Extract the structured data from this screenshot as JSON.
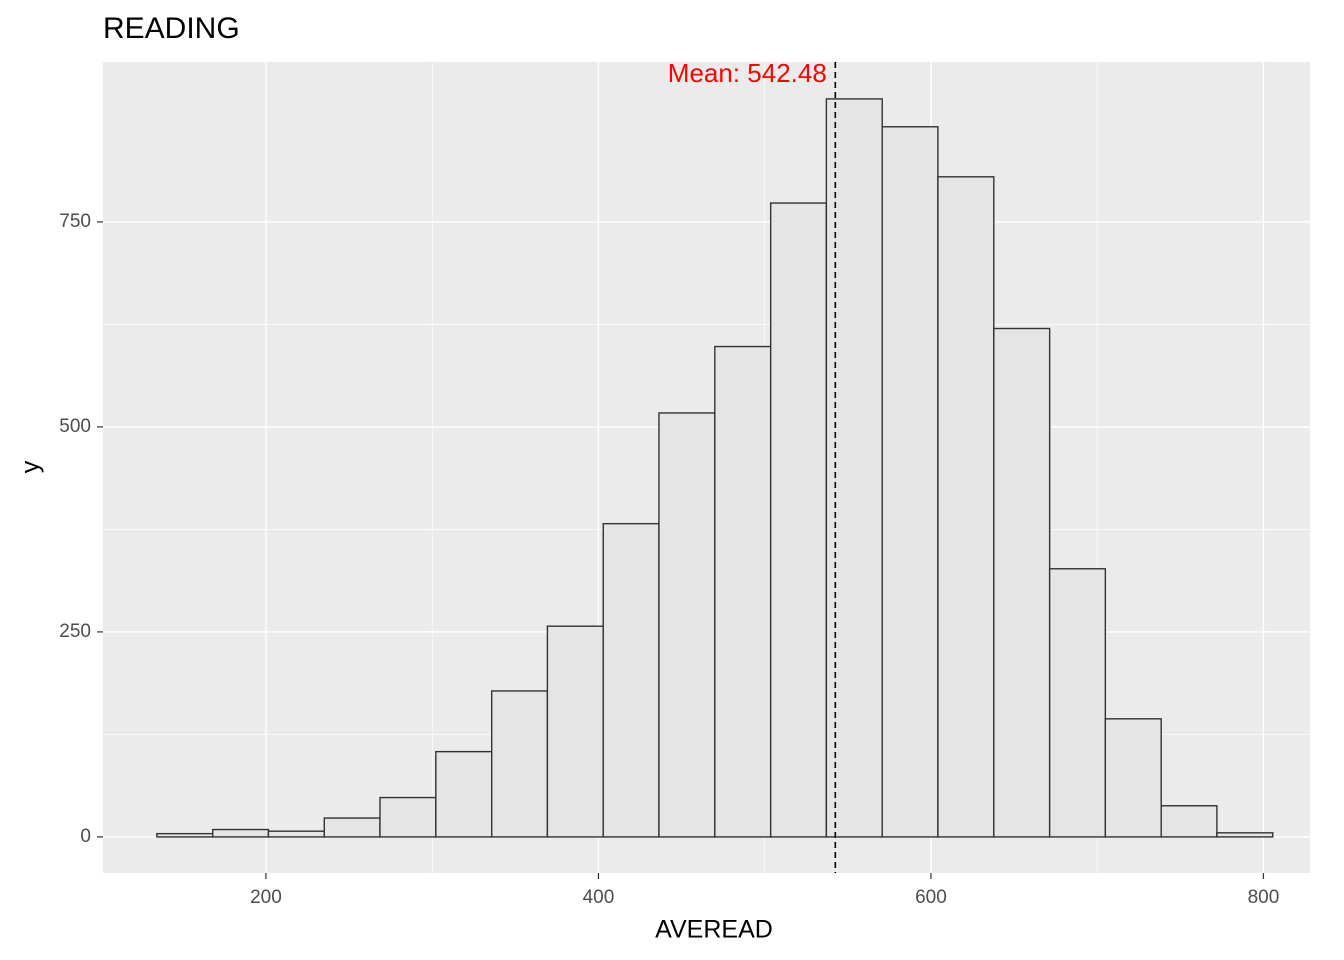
{
  "chart_data": {
    "type": "histogram",
    "title": "READING",
    "x_label": "AVEREAD",
    "y_label": "y",
    "bins": [
      134.4,
      168.0,
      201.5,
      235.1,
      268.6,
      302.2,
      335.8,
      369.3,
      402.9,
      436.4,
      470.0,
      503.6,
      537.1,
      570.7,
      604.2,
      637.8,
      671.4,
      704.9,
      738.5,
      772.0,
      805.6
    ],
    "counts": [
      4,
      9,
      7,
      23,
      48,
      104,
      178,
      257,
      382,
      517,
      598,
      773,
      900,
      866,
      805,
      620,
      327,
      144,
      38,
      5
    ],
    "color": "#e5e5e5",
    "edge_color": "#333333",
    "xlim": [
      102,
      828
    ],
    "ylim": [
      -44,
      945
    ],
    "xticks": [
      200,
      400,
      600,
      800
    ],
    "yticks": [
      0,
      250,
      500,
      750
    ],
    "grid": true,
    "mean_line": 542.48,
    "annotation": "Mean: 542.48",
    "annotation_color": "#ff0000"
  }
}
